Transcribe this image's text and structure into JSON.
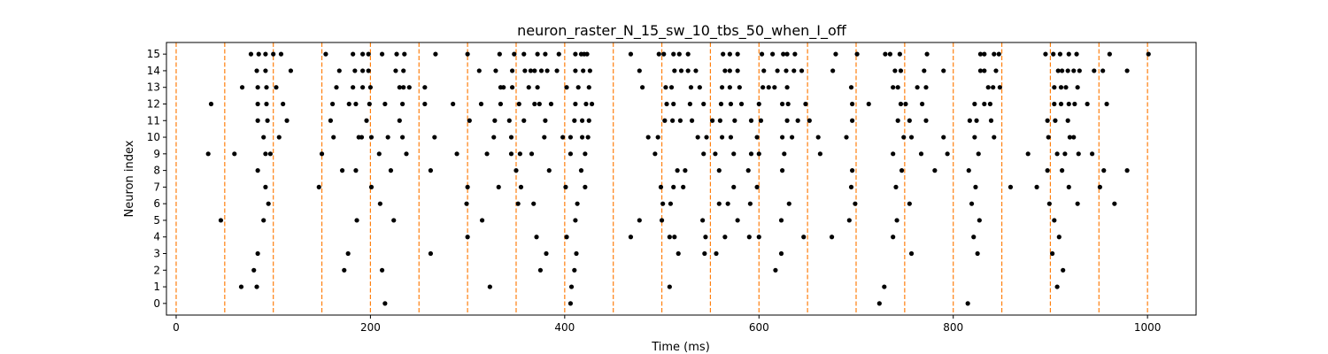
{
  "chart_data": {
    "type": "scatter",
    "title": "neuron_raster_N_15_sw_10_tbs_50_when_I_off",
    "xlabel": "Time (ms)",
    "ylabel": "Neuron index",
    "xlim": [
      -10,
      1050
    ],
    "ylim": [
      -0.7,
      15.7
    ],
    "x_ticks": [
      0,
      200,
      400,
      600,
      800,
      1000
    ],
    "y_ticks": [
      0,
      1,
      2,
      3,
      4,
      5,
      6,
      7,
      8,
      9,
      10,
      11,
      12,
      13,
      14,
      15
    ],
    "grid": false,
    "marker_color": "#000000",
    "vline_color": "#ff7f0e",
    "vlines": [
      0,
      50,
      100,
      150,
      200,
      250,
      300,
      350,
      400,
      450,
      500,
      550,
      600,
      650,
      700,
      750,
      800,
      850,
      900,
      950,
      1000
    ],
    "spikes": [
      {
        "neuron": 15,
        "times": [
          77,
          85,
          92,
          100,
          108,
          154,
          182,
          192,
          198,
          212,
          227,
          235,
          267,
          300,
          333,
          348,
          358,
          372,
          380,
          394,
          411,
          417,
          420,
          423,
          468,
          497,
          502,
          512,
          518,
          527,
          563,
          570,
          578,
          603,
          614,
          625,
          629,
          637,
          679,
          701,
          730,
          735,
          745,
          773,
          828,
          832,
          842,
          847,
          895,
          903,
          910,
          919,
          927,
          961,
          1001
        ]
      },
      {
        "neuron": 14,
        "times": [
          83,
          92,
          118,
          168,
          184,
          192,
          198,
          226,
          234,
          312,
          329,
          346,
          359,
          365,
          369,
          376,
          382,
          392,
          411,
          419,
          426,
          477,
          513,
          520,
          527,
          535,
          565,
          570,
          578,
          605,
          619,
          628,
          636,
          644,
          676,
          740,
          746,
          770,
          790,
          828,
          832,
          844,
          908,
          912,
          918,
          924,
          930,
          945,
          954,
          979
        ]
      },
      {
        "neuron": 13,
        "times": [
          68,
          84,
          93,
          103,
          165,
          182,
          192,
          200,
          230,
          234,
          240,
          256,
          334,
          337,
          346,
          363,
          372,
          402,
          414,
          425,
          480,
          504,
          510,
          530,
          539,
          562,
          570,
          580,
          604,
          610,
          616,
          629,
          695,
          738,
          743,
          763,
          772,
          836,
          841,
          848,
          904,
          911,
          916,
          928
        ]
      },
      {
        "neuron": 12,
        "times": [
          36,
          84,
          93,
          110,
          161,
          178,
          185,
          199,
          215,
          233,
          256,
          285,
          314,
          334,
          353,
          369,
          374,
          386,
          411,
          422,
          428,
          505,
          512,
          529,
          543,
          561,
          571,
          582,
          600,
          624,
          630,
          648,
          696,
          713,
          746,
          751,
          768,
          822,
          832,
          838,
          904,
          911,
          919,
          925,
          938,
          958
        ]
      },
      {
        "neuron": 11,
        "times": [
          84,
          94,
          114,
          159,
          196,
          230,
          302,
          328,
          343,
          358,
          380,
          410,
          418,
          425,
          503,
          511,
          519,
          531,
          552,
          560,
          575,
          592,
          602,
          629,
          640,
          652,
          696,
          743,
          755,
          772,
          817,
          824,
          839,
          897,
          905,
          918
        ]
      },
      {
        "neuron": 10,
        "times": [
          90,
          106,
          162,
          188,
          191,
          201,
          218,
          233,
          266,
          327,
          345,
          379,
          398,
          406,
          418,
          424,
          486,
          496,
          537,
          546,
          562,
          571,
          598,
          624,
          634,
          661,
          690,
          749,
          757,
          790,
          822,
          842,
          898,
          920,
          924
        ]
      },
      {
        "neuron": 9,
        "times": [
          33,
          60,
          92,
          97,
          150,
          209,
          237,
          289,
          320,
          345,
          354,
          366,
          406,
          421,
          493,
          543,
          555,
          574,
          592,
          600,
          626,
          663,
          738,
          767,
          794,
          826,
          877,
          907,
          915,
          929,
          943
        ]
      },
      {
        "neuron": 8,
        "times": [
          84,
          171,
          185,
          221,
          262,
          350,
          384,
          417,
          516,
          524,
          559,
          589,
          624,
          696,
          747,
          781,
          816,
          897,
          912,
          955,
          979
        ]
      },
      {
        "neuron": 7,
        "times": [
          92,
          147,
          201,
          300,
          332,
          355,
          401,
          421,
          499,
          512,
          522,
          574,
          598,
          695,
          741,
          823,
          859,
          886,
          919,
          951
        ]
      },
      {
        "neuron": 6,
        "times": [
          95,
          210,
          299,
          352,
          368,
          413,
          501,
          509,
          559,
          568,
          591,
          631,
          699,
          755,
          819,
          899,
          928,
          966
        ]
      },
      {
        "neuron": 5,
        "times": [
          46,
          90,
          186,
          224,
          315,
          411,
          477,
          500,
          542,
          578,
          623,
          693,
          742,
          827,
          904
        ]
      },
      {
        "neuron": 4,
        "times": [
          300,
          371,
          402,
          468,
          508,
          513,
          545,
          565,
          590,
          600,
          646,
          675,
          738,
          821,
          909
        ]
      },
      {
        "neuron": 3,
        "times": [
          84,
          177,
          262,
          381,
          412,
          517,
          544,
          556,
          623,
          757,
          825,
          902
        ]
      },
      {
        "neuron": 2,
        "times": [
          80,
          173,
          212,
          375,
          410,
          617,
          913
        ]
      },
      {
        "neuron": 1,
        "times": [
          67,
          83,
          323,
          407,
          508,
          729,
          907
        ]
      },
      {
        "neuron": 0,
        "times": [
          215,
          406,
          724,
          815
        ]
      }
    ]
  }
}
